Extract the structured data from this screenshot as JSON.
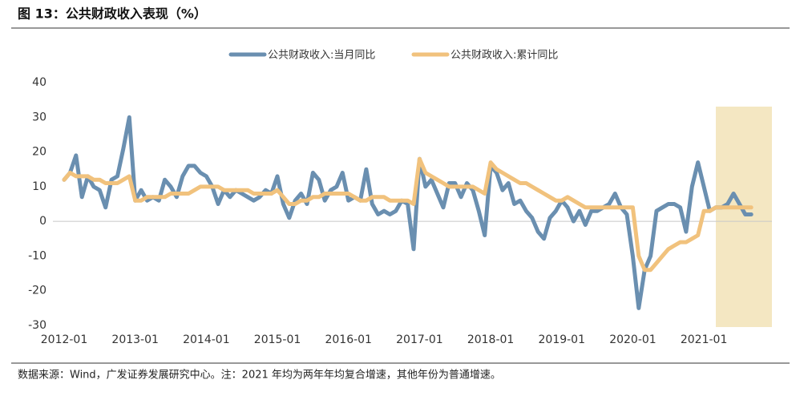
{
  "chart_data": {
    "type": "line",
    "title": "图 13：公共财政收入表现（%）",
    "source": "数据来源：Wind，广发证券发展研究中心。注：2021 年均为两年年均复合增速，其他年份为普通增速。",
    "x": [
      "2012-01",
      "2012-02",
      "2012-03",
      "2012-04",
      "2012-05",
      "2012-06",
      "2012-07",
      "2012-08",
      "2012-09",
      "2012-10",
      "2012-11",
      "2012-12",
      "2013-01",
      "2013-02",
      "2013-03",
      "2013-04",
      "2013-05",
      "2013-06",
      "2013-07",
      "2013-08",
      "2013-09",
      "2013-10",
      "2013-11",
      "2013-12",
      "2014-01",
      "2014-02",
      "2014-03",
      "2014-04",
      "2014-05",
      "2014-06",
      "2014-07",
      "2014-08",
      "2014-09",
      "2014-10",
      "2014-11",
      "2014-12",
      "2015-01",
      "2015-02",
      "2015-03",
      "2015-04",
      "2015-05",
      "2015-06",
      "2015-07",
      "2015-08",
      "2015-09",
      "2015-10",
      "2015-11",
      "2015-12",
      "2016-01",
      "2016-02",
      "2016-03",
      "2016-04",
      "2016-05",
      "2016-06",
      "2016-07",
      "2016-08",
      "2016-09",
      "2016-10",
      "2016-11",
      "2016-12",
      "2017-01",
      "2017-02",
      "2017-03",
      "2017-04",
      "2017-05",
      "2017-06",
      "2017-07",
      "2017-08",
      "2017-09",
      "2017-10",
      "2017-11",
      "2017-12",
      "2018-01",
      "2018-02",
      "2018-03",
      "2018-04",
      "2018-05",
      "2018-06",
      "2018-07",
      "2018-08",
      "2018-09",
      "2018-10",
      "2018-11",
      "2018-12",
      "2019-01",
      "2019-02",
      "2019-03",
      "2019-04",
      "2019-05",
      "2019-06",
      "2019-07",
      "2019-08",
      "2019-09",
      "2019-10",
      "2019-11",
      "2019-12",
      "2020-01",
      "2020-02",
      "2020-03",
      "2020-04",
      "2020-05",
      "2020-06",
      "2020-07",
      "2020-08",
      "2020-09",
      "2020-10",
      "2020-11",
      "2020-12",
      "2021-01",
      "2021-02",
      "2021-03",
      "2021-04",
      "2021-05",
      "2021-06",
      "2021-07",
      "2021-08",
      "2021-09"
    ],
    "series": [
      {
        "name": "公共财政收入:当月同比",
        "color": "#6a8fb0",
        "values": [
          12,
          14,
          19,
          7,
          13,
          10,
          9,
          4,
          12,
          13,
          21,
          30,
          6,
          9,
          6,
          7,
          6,
          12,
          10,
          7,
          13,
          16,
          16,
          14,
          13,
          10,
          5,
          9,
          7,
          9,
          8,
          7,
          6,
          7,
          9,
          8,
          13,
          5,
          1,
          6,
          8,
          5,
          14,
          12,
          6,
          9,
          10,
          14,
          6,
          7,
          6,
          15,
          5,
          2,
          3,
          2,
          3,
          6,
          5,
          -8,
          18,
          10,
          12,
          8,
          4,
          11,
          11,
          7,
          11,
          9,
          3,
          -4,
          16,
          14,
          9,
          11,
          5,
          6,
          3,
          1,
          -3,
          -5,
          1,
          3,
          6,
          4,
          0,
          3,
          -1,
          3,
          3,
          4,
          5,
          8,
          4,
          2,
          -10,
          -25,
          -14,
          -10,
          3,
          4,
          5,
          5,
          4,
          -3,
          10,
          17,
          10,
          3,
          4,
          4,
          5,
          8,
          5,
          2,
          2
        ]
      },
      {
        "name": "公共财政收入:累计同比",
        "color": "#f1c27d",
        "values": [
          12,
          14,
          13,
          13,
          13,
          12,
          12,
          11,
          11,
          11,
          12,
          13,
          6,
          6,
          7,
          7,
          7,
          7,
          8,
          8,
          8,
          8,
          9,
          10,
          10,
          10,
          10,
          9,
          9,
          9,
          9,
          9,
          8,
          8,
          8,
          8,
          9,
          7,
          5,
          5,
          6,
          6,
          7,
          7,
          8,
          8,
          8,
          8,
          8,
          7,
          6,
          6,
          7,
          7,
          7,
          6,
          6,
          6,
          6,
          5,
          18,
          14,
          13,
          12,
          11,
          10,
          10,
          10,
          10,
          10,
          9,
          8,
          17,
          15,
          14,
          13,
          12,
          11,
          11,
          10,
          9,
          8,
          7,
          6,
          6,
          7,
          6,
          5,
          4,
          4,
          4,
          4,
          4,
          4,
          4,
          4,
          4,
          -10,
          -14,
          -14,
          -12,
          -10,
          -8,
          -7,
          -6,
          -6,
          -5,
          -4,
          3,
          3,
          4,
          4,
          4,
          4,
          4,
          4,
          4
        ]
      }
    ],
    "xticks": [
      "2012-01",
      "2013-01",
      "2014-01",
      "2015-01",
      "2016-01",
      "2017-01",
      "2018-01",
      "2019-01",
      "2020-01",
      "2021-01"
    ],
    "ylim": [
      -30,
      40
    ],
    "yticks": [
      -30,
      -20,
      -10,
      0,
      10,
      20,
      30,
      40
    ],
    "legend": "top"
  }
}
